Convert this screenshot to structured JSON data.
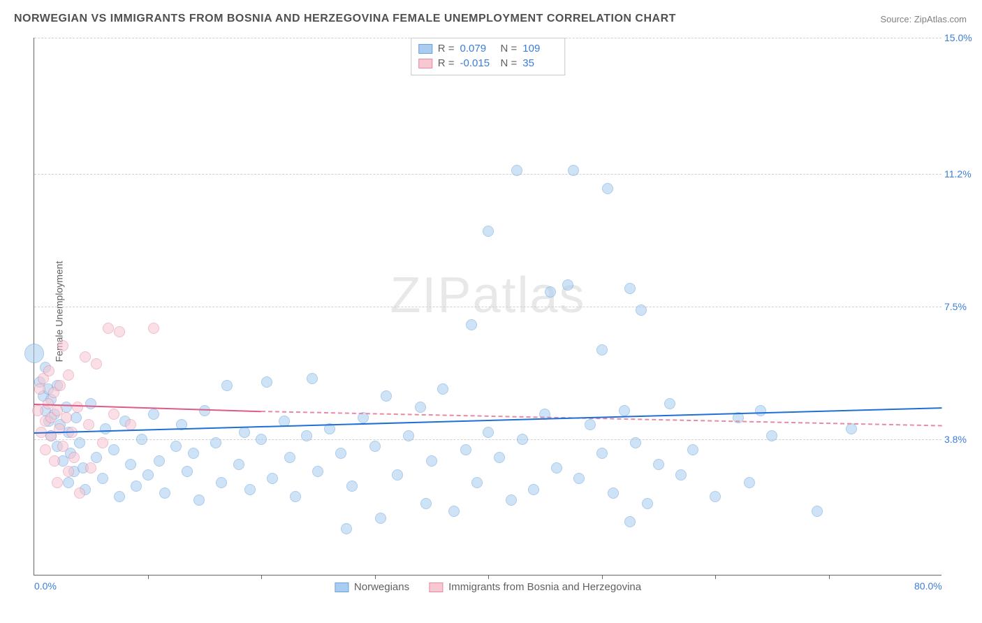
{
  "title": "NORWEGIAN VS IMMIGRANTS FROM BOSNIA AND HERZEGOVINA FEMALE UNEMPLOYMENT CORRELATION CHART",
  "source_label": "Source: ZipAtlas.com",
  "ylabel": "Female Unemployment",
  "watermark": "ZIPatlas",
  "chart": {
    "type": "scatter",
    "xlim": [
      0,
      80
    ],
    "ylim": [
      0,
      15
    ],
    "x_ticks": [
      0.0,
      80.0
    ],
    "x_tick_labels": [
      "0.0%",
      "80.0%"
    ],
    "x_minor_ticks": [
      10,
      20,
      30,
      40,
      50,
      60,
      70
    ],
    "y_ticks": [
      3.8,
      7.5,
      11.2,
      15.0
    ],
    "y_tick_labels": [
      "3.8%",
      "7.5%",
      "11.2%",
      "15.0%"
    ],
    "grid_color": "#d0d0d0",
    "background_color": "#ffffff",
    "axis_color": "#666666",
    "tick_label_color": "#3b7dd8",
    "point_radius_default": 8
  },
  "series": [
    {
      "id": "norwegians",
      "label": "Norwegians",
      "fill_color": "#a9cdf1",
      "stroke_color": "#6aa2de",
      "fill_opacity": 0.55,
      "R": "0.079",
      "N": "109",
      "trend": {
        "x1": 0,
        "y1": 4.0,
        "x2": 80,
        "y2": 4.7,
        "color": "#1f6fd6",
        "width": 2
      },
      "points": [
        [
          0,
          6.2,
          14
        ],
        [
          0.5,
          5.4
        ],
        [
          0.8,
          5.0
        ],
        [
          1,
          5.8
        ],
        [
          1,
          4.6
        ],
        [
          1.2,
          5.2
        ],
        [
          1.3,
          4.3
        ],
        [
          1.5,
          4.9
        ],
        [
          1.5,
          3.9
        ],
        [
          1.8,
          4.5
        ],
        [
          2,
          5.3
        ],
        [
          2,
          3.6
        ],
        [
          2.3,
          4.2
        ],
        [
          2.5,
          3.2
        ],
        [
          2.8,
          4.7
        ],
        [
          3,
          2.6
        ],
        [
          3,
          4.0
        ],
        [
          3.2,
          3.4
        ],
        [
          3.5,
          2.9
        ],
        [
          3.7,
          4.4
        ],
        [
          4,
          3.7
        ],
        [
          4.3,
          3.0
        ],
        [
          4.5,
          2.4
        ],
        [
          5,
          4.8
        ],
        [
          5.5,
          3.3
        ],
        [
          6,
          2.7
        ],
        [
          6.3,
          4.1
        ],
        [
          7,
          3.5
        ],
        [
          7.5,
          2.2
        ],
        [
          8,
          4.3
        ],
        [
          8.5,
          3.1
        ],
        [
          9,
          2.5
        ],
        [
          9.5,
          3.8
        ],
        [
          10,
          2.8
        ],
        [
          10.5,
          4.5
        ],
        [
          11,
          3.2
        ],
        [
          11.5,
          2.3
        ],
        [
          12.5,
          3.6
        ],
        [
          13,
          4.2
        ],
        [
          13.5,
          2.9
        ],
        [
          14,
          3.4
        ],
        [
          14.5,
          2.1
        ],
        [
          15,
          4.6
        ],
        [
          16,
          3.7
        ],
        [
          16.5,
          2.6
        ],
        [
          17,
          5.3
        ],
        [
          18,
          3.1
        ],
        [
          18.5,
          4.0
        ],
        [
          19,
          2.4
        ],
        [
          20,
          3.8
        ],
        [
          20.5,
          5.4
        ],
        [
          21,
          2.7
        ],
        [
          22,
          4.3
        ],
        [
          22.5,
          3.3
        ],
        [
          23,
          2.2
        ],
        [
          24,
          3.9
        ],
        [
          24.5,
          5.5
        ],
        [
          25,
          2.9
        ],
        [
          26,
          4.1
        ],
        [
          27,
          3.4
        ],
        [
          27.5,
          1.3
        ],
        [
          28,
          2.5
        ],
        [
          29,
          4.4
        ],
        [
          30,
          3.6
        ],
        [
          30.5,
          1.6
        ],
        [
          31,
          5.0
        ],
        [
          32,
          2.8
        ],
        [
          33,
          3.9
        ],
        [
          34,
          4.7
        ],
        [
          34.5,
          2.0
        ],
        [
          35,
          3.2
        ],
        [
          36,
          5.2
        ],
        [
          37,
          1.8
        ],
        [
          38,
          3.5
        ],
        [
          38.5,
          7.0
        ],
        [
          39,
          2.6
        ],
        [
          40,
          4.0
        ],
        [
          40,
          9.6
        ],
        [
          41,
          3.3
        ],
        [
          42,
          2.1
        ],
        [
          42.5,
          11.3
        ],
        [
          43,
          3.8
        ],
        [
          44,
          2.4
        ],
        [
          45,
          4.5
        ],
        [
          45.5,
          7.9
        ],
        [
          46,
          3.0
        ],
        [
          47,
          8.1
        ],
        [
          47.5,
          11.3
        ],
        [
          48,
          2.7
        ],
        [
          49,
          4.2
        ],
        [
          50,
          3.4
        ],
        [
          50,
          6.3
        ],
        [
          50.5,
          10.8
        ],
        [
          51,
          2.3
        ],
        [
          52,
          4.6
        ],
        [
          52.5,
          8.0
        ],
        [
          52.5,
          1.5
        ],
        [
          53,
          3.7
        ],
        [
          53.5,
          7.4
        ],
        [
          54,
          2.0
        ],
        [
          55,
          3.1
        ],
        [
          56,
          4.8
        ],
        [
          57,
          2.8
        ],
        [
          58,
          3.5
        ],
        [
          60,
          2.2
        ],
        [
          62,
          4.4
        ],
        [
          63,
          2.6
        ],
        [
          64,
          4.6
        ],
        [
          65,
          3.9
        ],
        [
          69,
          1.8
        ],
        [
          72,
          4.1
        ]
      ]
    },
    {
      "id": "bosnia",
      "label": "Immigrants from Bosnia and Herzegovina",
      "fill_color": "#f7c7d2",
      "stroke_color": "#e78aa4",
      "fill_opacity": 0.55,
      "R": "-0.015",
      "N": "35",
      "trend_solid": {
        "x1": 0,
        "y1": 4.8,
        "x2": 20,
        "y2": 4.6,
        "color": "#e05a84",
        "width": 2
      },
      "trend_dash": {
        "x1": 20,
        "y1": 4.6,
        "x2": 80,
        "y2": 4.2,
        "color": "#e78aa4",
        "width": 2
      },
      "points": [
        [
          0.3,
          4.6
        ],
        [
          0.5,
          5.2
        ],
        [
          0.6,
          4.0
        ],
        [
          0.8,
          5.5
        ],
        [
          1.0,
          4.3
        ],
        [
          1.0,
          3.5
        ],
        [
          1.2,
          4.8
        ],
        [
          1.3,
          5.7
        ],
        [
          1.5,
          3.9
        ],
        [
          1.5,
          4.4
        ],
        [
          1.7,
          5.1
        ],
        [
          1.8,
          3.2
        ],
        [
          2.0,
          4.6
        ],
        [
          2.0,
          2.6
        ],
        [
          2.2,
          4.1
        ],
        [
          2.3,
          5.3
        ],
        [
          2.5,
          3.6
        ],
        [
          2.5,
          6.4
        ],
        [
          2.8,
          4.4
        ],
        [
          3.0,
          2.9
        ],
        [
          3.0,
          5.6
        ],
        [
          3.3,
          4.0
        ],
        [
          3.5,
          3.3
        ],
        [
          3.8,
          4.7
        ],
        [
          4.0,
          2.3
        ],
        [
          4.5,
          6.1
        ],
        [
          4.8,
          4.2
        ],
        [
          5.0,
          3.0
        ],
        [
          5.5,
          5.9
        ],
        [
          6.0,
          3.7
        ],
        [
          6.5,
          6.9
        ],
        [
          7.0,
          4.5
        ],
        [
          7.5,
          6.8
        ],
        [
          8.5,
          4.2
        ],
        [
          10.5,
          6.9
        ]
      ]
    }
  ],
  "legend": {
    "items": [
      {
        "label": "Norwegians",
        "fill": "#a9cdf1",
        "stroke": "#6aa2de"
      },
      {
        "label": "Immigrants from Bosnia and Herzegovina",
        "fill": "#f7c7d2",
        "stroke": "#e78aa4"
      }
    ]
  },
  "stats_labels": {
    "R": "R =",
    "N": "N ="
  }
}
